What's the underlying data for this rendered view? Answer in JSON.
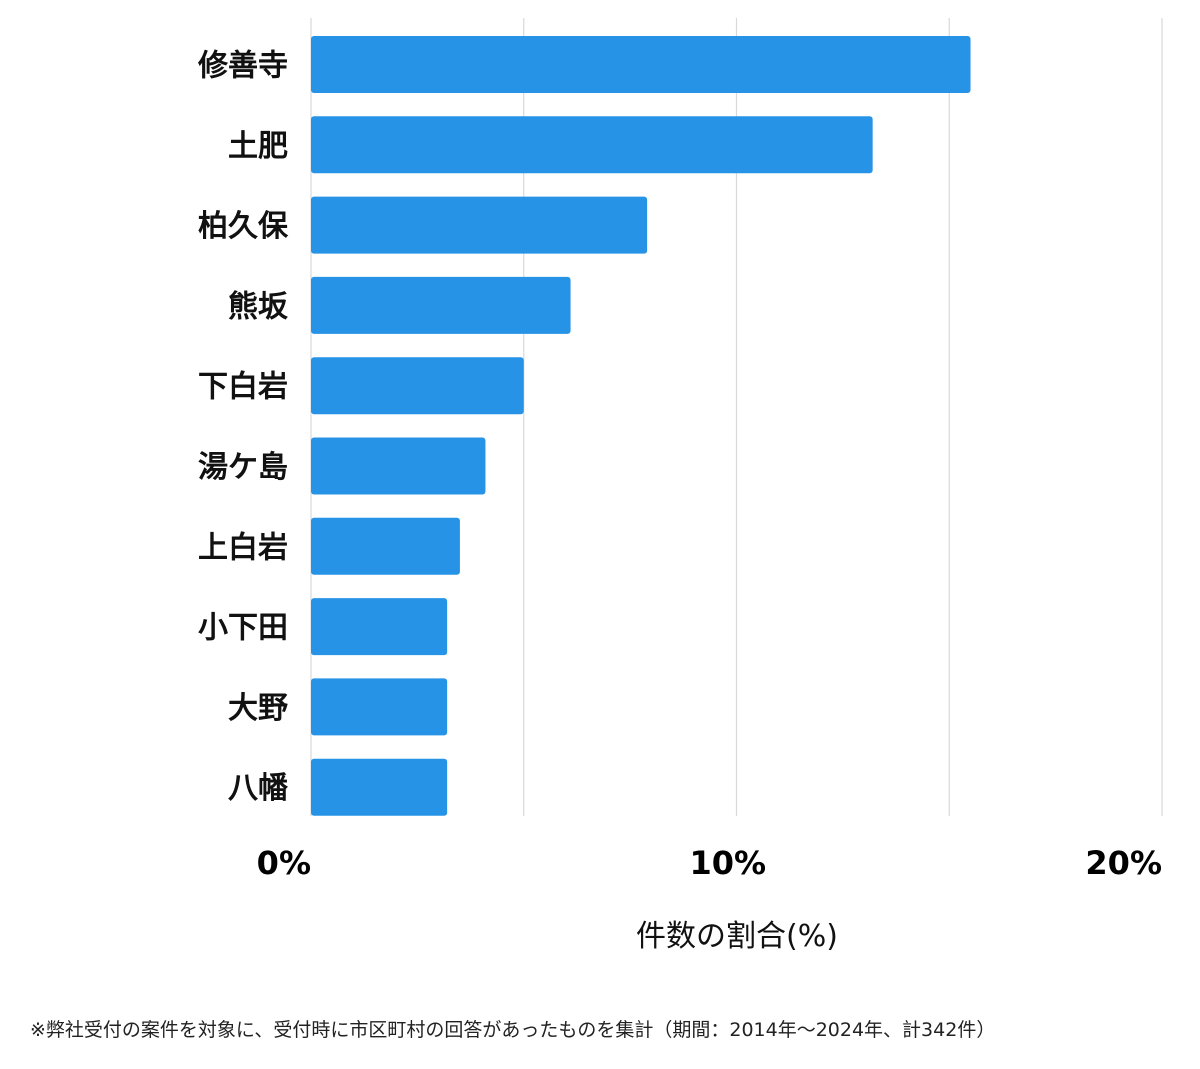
{
  "chart_data": {
    "type": "bar",
    "orientation": "horizontal",
    "categories": [
      "修善寺",
      "土肥",
      "柏久保",
      "熊坂",
      "下白岩",
      "湯ケ島",
      "上白岩",
      "小下田",
      "大野",
      "八幡"
    ],
    "values": [
      15.5,
      13.2,
      7.9,
      6.1,
      5.0,
      4.1,
      3.5,
      3.2,
      3.2,
      3.2
    ],
    "xlim": [
      0,
      20
    ],
    "xticks": [
      0,
      10,
      20
    ],
    "xtick_labels": [
      "0%",
      "10%",
      "20%"
    ],
    "xlabel": "件数の割合(%)",
    "ylabel": "",
    "title": "",
    "grid": true,
    "bar_color": "#2793e6",
    "grid_color": "#d9d9d9"
  },
  "footnote": "※弊社受付の案件を対象に、受付時に市区町村の回答があったものを集計（期間：2014年～2024年、計342件）"
}
